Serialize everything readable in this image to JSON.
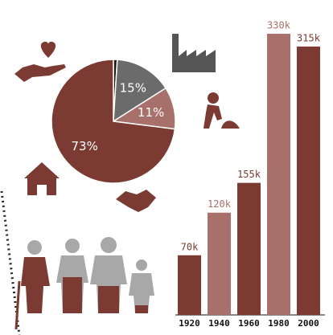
{
  "chart_data": [
    {
      "type": "pie",
      "values": [
        1,
        15,
        11,
        73
      ],
      "value_labels": [
        null,
        "15%",
        "11%",
        "73%"
      ],
      "colors": [
        "#1a1a1a",
        "#6b6b6b",
        "#a8706a",
        "#7b3b32"
      ]
    },
    {
      "type": "bar",
      "categories": [
        "1920",
        "1940",
        "1960",
        "1980",
        "2000"
      ],
      "values": [
        70000,
        120000,
        155000,
        330000,
        315000
      ],
      "value_labels": [
        "70k",
        "120k",
        "155k",
        "330k",
        "315k"
      ],
      "colors": [
        "#7b3b32",
        "#a8706a",
        "#7b3b32",
        "#a8706a",
        "#7b3b32"
      ]
    }
  ]
}
